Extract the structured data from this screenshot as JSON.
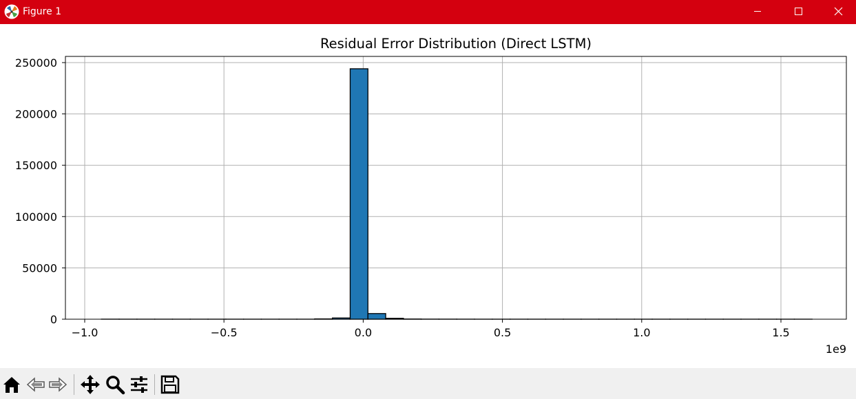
{
  "window": {
    "title": "Figure 1",
    "icon": "matplotlib-logo-icon",
    "controls": [
      "minimize-icon",
      "maximize-icon",
      "close-icon"
    ]
  },
  "toolbar": {
    "tools": [
      "home-icon",
      "back-arrow-icon",
      "forward-arrow-icon",
      "pan-icon",
      "zoom-icon",
      "configure-subplots-icon",
      "save-icon"
    ]
  },
  "colors": {
    "titlebar": "#d4000f",
    "bar_fill": "#1f77b4",
    "bar_edge": "#000000",
    "grid": "#b0b0b0"
  },
  "chart_data": {
    "type": "bar",
    "title": "Residual Error Distribution (Direct LSTM)",
    "xlabel": "",
    "ylabel": "",
    "x_offset_label": "1e9",
    "xlim": [
      -1.0,
      1.6
    ],
    "ylim": [
      0,
      255000
    ],
    "xticks": [
      -1.0,
      -0.5,
      0.0,
      0.5,
      1.0,
      1.5
    ],
    "xtick_labels": [
      "−1.0",
      "−0.5",
      "0.0",
      "0.5",
      "1.0",
      "1.5"
    ],
    "yticks": [
      0,
      50000,
      100000,
      150000,
      200000,
      250000
    ],
    "ytick_labels": [
      "0",
      "50000",
      "100000",
      "150000",
      "200000",
      "250000"
    ],
    "grid": true,
    "bin_start": -0.94,
    "bin_width": 0.0638,
    "counts": [
      60,
      40,
      40,
      40,
      40,
      40,
      40,
      40,
      40,
      40,
      40,
      40,
      300,
      1200,
      244000,
      5500,
      900,
      200,
      100,
      80,
      60,
      40,
      40,
      40,
      40,
      40,
      40,
      40,
      40,
      40,
      40,
      40,
      40,
      40,
      40,
      40,
      40,
      40,
      40,
      40
    ]
  }
}
